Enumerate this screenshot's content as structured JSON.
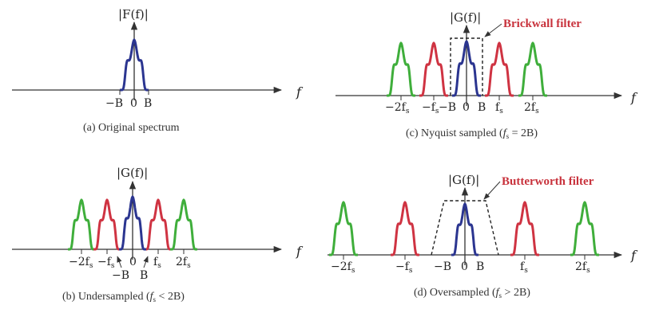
{
  "figure": {
    "panels": [
      {
        "id": "a",
        "caption": "(a)  Original spectrum",
        "y_label": "|F(f)|",
        "x_label": "f",
        "tick_labels": [
          "−B",
          "0",
          "B"
        ],
        "filter_label": ""
      },
      {
        "id": "b",
        "caption_main": "(b)  Undersampled (",
        "caption_fs": "f",
        "caption_sub": "s",
        "caption_tail": " < 2B)",
        "y_label": "|G(f)|",
        "x_label": "f",
        "tick_labels": [
          "−2f",
          "−f",
          "0",
          "f",
          "2f"
        ],
        "extra_labels": [
          "−B",
          "B"
        ],
        "tick_sub": "s",
        "filter_label": ""
      },
      {
        "id": "c",
        "caption_main": "(c)  Nyquist sampled (",
        "caption_fs": "f",
        "caption_sub": "s",
        "caption_tail": " = 2B)",
        "y_label": "|G(f)|",
        "x_label": "f",
        "tick_labels": [
          "−2f",
          "−f",
          "−B",
          "0",
          "B",
          "f",
          "2f"
        ],
        "tick_sub": "s",
        "filter_label": "Brickwall filter"
      },
      {
        "id": "d",
        "caption_main": "(d)  Oversampled (",
        "caption_fs": "f",
        "caption_sub": "s",
        "caption_tail": " > 2B)",
        "y_label": "|G(f)|",
        "x_label": "f",
        "tick_labels": [
          "−2f",
          "−f",
          "−B",
          "0",
          "B",
          "f",
          "2f"
        ],
        "tick_sub": "s",
        "filter_label": "Butterworth filter"
      }
    ],
    "colors": {
      "baseband": "#2b3590",
      "first_replica": "#cf3342",
      "second_replica": "#3fae3b",
      "axis": "#333333",
      "filter": "#222222"
    }
  }
}
